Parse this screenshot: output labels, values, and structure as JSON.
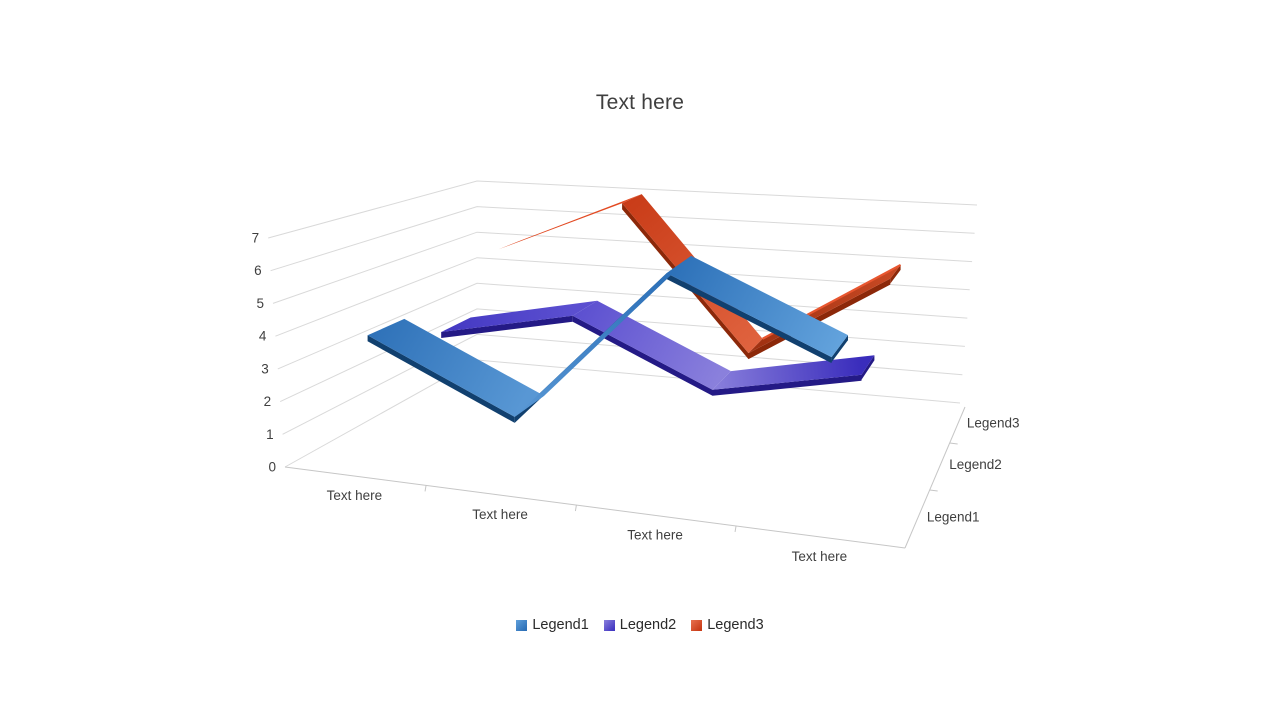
{
  "title": "Text here",
  "chart_data": {
    "type": "line",
    "subtype": "3d-ribbon",
    "title": "Text here",
    "categories": [
      "Text here",
      "Text here",
      "Text here",
      "Text here"
    ],
    "series": [
      {
        "name": "Legend1",
        "color": "#2E71B8",
        "color_light": "#5FA0DB",
        "color_dark": "#11406F",
        "values": [
          4,
          2,
          7,
          5
        ]
      },
      {
        "name": "Legend2",
        "color": "#4338C2",
        "color_light": "#8A80DC",
        "color_dark": "#241A86",
        "values": [
          3,
          4,
          2,
          3
        ]
      },
      {
        "name": "Legend3",
        "color": "#C93C18",
        "color_light": "#E8714E",
        "color_dark": "#8C2809",
        "values": [
          5,
          7,
          2,
          5
        ]
      }
    ],
    "depth_axis_labels": [
      "Legend1",
      "Legend2",
      "Legend3"
    ],
    "value_axis": {
      "min": 0,
      "max": 7,
      "step": 1,
      "ticks": [
        "0",
        "1",
        "2",
        "3",
        "4",
        "5",
        "6",
        "7"
      ]
    },
    "legend": {
      "position": "bottom",
      "entries": [
        "Legend1",
        "Legend2",
        "Legend3"
      ]
    },
    "grid": true,
    "grid_color": "#D9D9D9",
    "axis_color": "#C6C6C6",
    "label_color": "#3f3f3f"
  }
}
